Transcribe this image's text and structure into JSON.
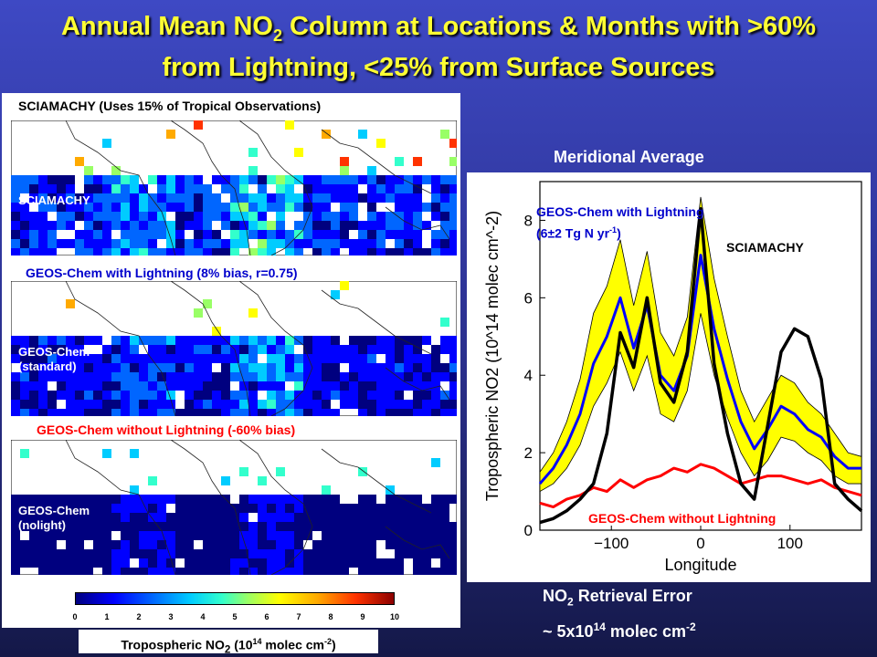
{
  "title": {
    "line1_pre": "Annual Mean NO",
    "line1_sub": "2",
    "line1_post": " Column at Locations & Months with >60%",
    "line2": "from Lightning, <25% from Surface Sources"
  },
  "maps": [
    {
      "label": "SCIAMACHY (Uses 15% of Tropical Observations)",
      "inset": "SCIAMACHY",
      "label_color": "#000000"
    },
    {
      "label": "GEOS-Chem with Lightning (8% bias, r=0.75)",
      "inset": "GEOS-Chem\n(standard)",
      "label_color": "#0000cc"
    },
    {
      "label": "GEOS-Chem without Lightning (-60% bias)",
      "inset": "GEOS-Chem\n(nolight)",
      "label_color": "#ff0000"
    }
  ],
  "colorbar": {
    "ticks": [
      "0",
      "1",
      "2",
      "3",
      "4",
      "5",
      "6",
      "7",
      "8",
      "9",
      "10"
    ],
    "label_pre": "Tropospheric NO",
    "label_sub": "2",
    "label_mid": " (10",
    "label_sup": "14",
    "label_post": " molec cm",
    "label_sup2": "-2",
    "label_end": ")",
    "colors": [
      "#00007f",
      "#0000ff",
      "#0066ff",
      "#00ccff",
      "#33ffcc",
      "#99ff66",
      "#ffff00",
      "#ffaa00",
      "#ff3300",
      "#8b0000"
    ]
  },
  "meridional": {
    "title": "Meridional Average",
    "annot_geos_line1": "GEOS-Chem with Lightning",
    "annot_geos_line2_pre": "(6±2 Tg N yr",
    "annot_geos_line2_sup": "-1",
    "annot_geos_line2_post": ")",
    "annot_sciamachy": "SCIAMACHY",
    "annot_nolight": "GEOS-Chem without Lightning"
  },
  "retrieval": {
    "line1_pre": "NO",
    "line1_sub": "2",
    "line1_post": " Retrieval Error",
    "line2_pre": "~ 5x10",
    "line2_sup": "14",
    "line2_mid": " molec cm",
    "line2_sup2": "-2"
  },
  "chart_data": {
    "type": "line",
    "title": "Meridional Average",
    "xlabel": "Longitude",
    "ylabel": "Tropospheric NO2 (10^14 molec cm^-2)",
    "xlim": [
      -180,
      180
    ],
    "ylim": [
      0,
      9
    ],
    "xticks": [
      -100,
      0,
      100
    ],
    "yticks": [
      0,
      2,
      4,
      6,
      8
    ],
    "x": [
      -180,
      -165,
      -150,
      -135,
      -120,
      -105,
      -90,
      -75,
      -60,
      -45,
      -30,
      -15,
      0,
      15,
      30,
      45,
      60,
      75,
      90,
      105,
      120,
      135,
      150,
      165,
      180
    ],
    "series": [
      {
        "name": "SCIAMACHY",
        "color": "#000000",
        "values": [
          0.2,
          0.3,
          0.5,
          0.8,
          1.2,
          2.5,
          5.1,
          4.2,
          6.0,
          3.8,
          3.3,
          4.6,
          8.3,
          4.3,
          2.5,
          1.2,
          0.8,
          2.7,
          4.6,
          5.2,
          5.0,
          3.9,
          1.2,
          0.8,
          0.5
        ]
      },
      {
        "name": "GEOS-Chem with Lightning",
        "color": "#0000ff",
        "values": [
          1.2,
          1.6,
          2.2,
          3.0,
          4.3,
          5.0,
          6.0,
          4.7,
          5.8,
          4.0,
          3.6,
          4.5,
          7.1,
          5.2,
          3.9,
          2.8,
          2.1,
          2.6,
          3.2,
          3.0,
          2.6,
          2.4,
          1.9,
          1.6,
          1.6
        ],
        "band_low": [
          1.0,
          1.2,
          1.6,
          2.2,
          3.2,
          3.8,
          4.6,
          3.6,
          4.5,
          3.0,
          2.8,
          3.6,
          5.6,
          4.0,
          2.9,
          2.0,
          1.4,
          1.8,
          2.4,
          2.3,
          2.0,
          1.8,
          1.4,
          1.2,
          1.2
        ],
        "band_high": [
          1.5,
          2.0,
          2.8,
          3.9,
          5.6,
          6.3,
          7.5,
          5.8,
          7.2,
          5.1,
          4.5,
          5.5,
          8.6,
          6.5,
          5.0,
          3.6,
          2.8,
          3.4,
          4.0,
          3.8,
          3.3,
          3.0,
          2.5,
          2.0,
          1.9
        ]
      },
      {
        "name": "GEOS-Chem without Lightning",
        "color": "#ff0000",
        "values": [
          0.7,
          0.6,
          0.8,
          0.9,
          1.1,
          1.0,
          1.3,
          1.1,
          1.3,
          1.4,
          1.6,
          1.5,
          1.7,
          1.6,
          1.4,
          1.2,
          1.3,
          1.4,
          1.4,
          1.3,
          1.2,
          1.3,
          1.1,
          1.0,
          0.9
        ]
      }
    ]
  }
}
